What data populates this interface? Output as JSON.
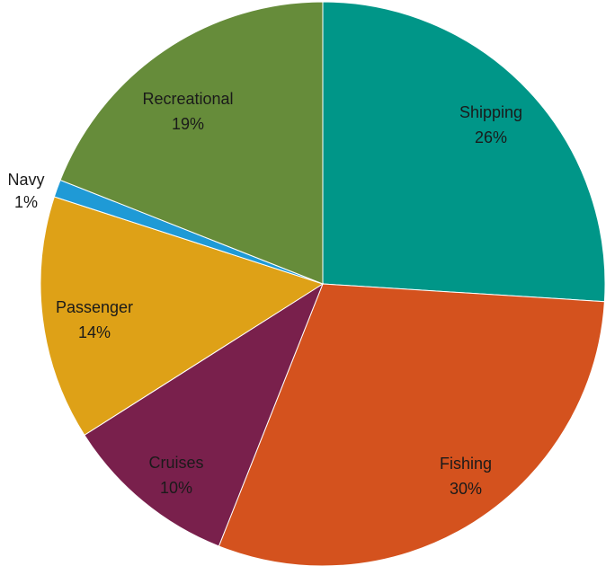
{
  "chart_data": {
    "type": "pie",
    "start_angle_deg": 0,
    "direction": "clockwise",
    "slices": [
      {
        "label": "Shipping",
        "value": 26,
        "value_label": "26%",
        "color": "#009688",
        "text_color": "#1a1a1a"
      },
      {
        "label": "Fishing",
        "value": 30,
        "value_label": "30%",
        "color": "#d4521e",
        "text_color": "#1a1a1a"
      },
      {
        "label": "Cruises",
        "value": 10,
        "value_label": "10%",
        "color": "#79204c",
        "text_color": "#1a1a1a"
      },
      {
        "label": "Passenger",
        "value": 14,
        "value_label": "14%",
        "color": "#dea117",
        "text_color": "#1a1a1a"
      },
      {
        "label": "Navy",
        "value": 1,
        "value_label": "1%",
        "color": "#1f9ad6",
        "text_color": "#1a1a1a"
      },
      {
        "label": "Recreational",
        "value": 19,
        "value_label": "19%",
        "color": "#668c3a",
        "text_color": "#1a1a1a"
      }
    ]
  }
}
